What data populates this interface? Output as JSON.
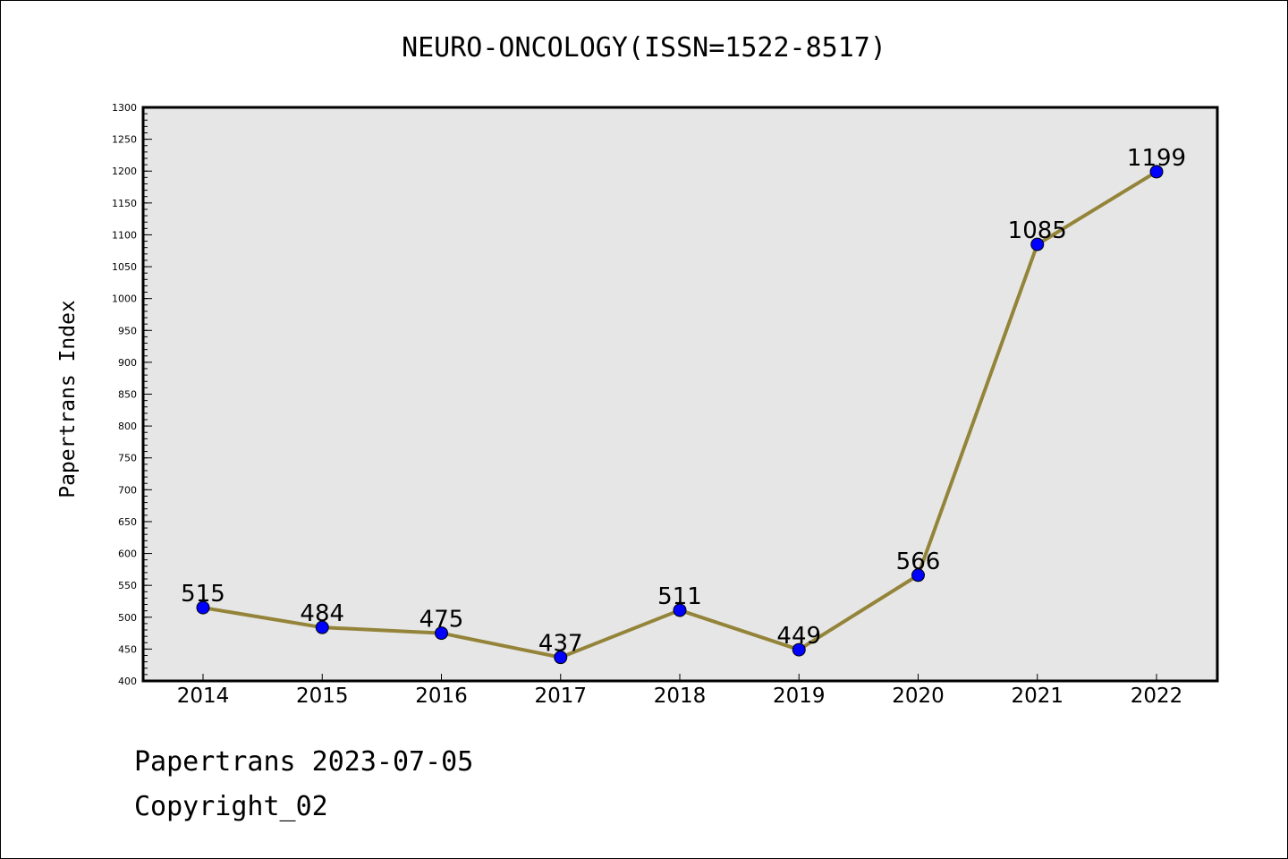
{
  "chart_data": {
    "type": "line",
    "title": "NEURO-ONCOLOGY(ISSN=1522-8517)",
    "xlabel": "",
    "ylabel": "Papertrans Index",
    "categories": [
      "2014",
      "2015",
      "2016",
      "2017",
      "2018",
      "2019",
      "2020",
      "2021",
      "2022"
    ],
    "values": [
      515,
      484,
      475,
      437,
      511,
      449,
      566,
      1085,
      1199
    ],
    "ylim": [
      400,
      1300
    ],
    "yticks": [
      400,
      450,
      500,
      550,
      600,
      650,
      700,
      750,
      800,
      850,
      900,
      950,
      1000,
      1050,
      1100,
      1150,
      1200,
      1250,
      1300
    ],
    "grid": false,
    "colors": {
      "line": "#948439",
      "marker": "#0000ff",
      "plot_background": "#e6e6e6"
    }
  },
  "footer": {
    "line1": "Papertrans 2023-07-05",
    "line2": "Copyright_02"
  }
}
